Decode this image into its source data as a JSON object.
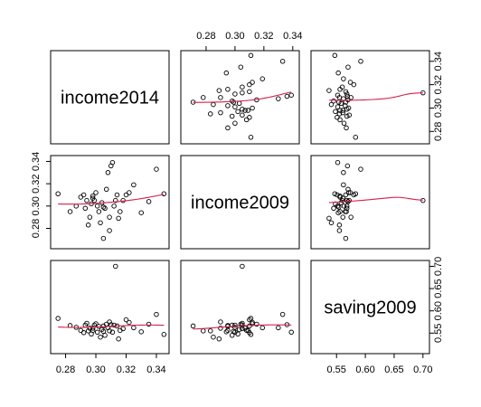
{
  "chart_data": {
    "type": "scatter",
    "variables": [
      "income2014",
      "income2009",
      "saving2009"
    ],
    "ticks": {
      "income2014": [
        0.28,
        0.3,
        0.32,
        0.34
      ],
      "income2009": [
        0.28,
        0.3,
        0.32,
        0.34
      ],
      "saving2009": [
        0.55,
        0.6,
        0.65,
        0.7
      ]
    },
    "tick_labels": {
      "income2014": [
        "0.28",
        "0.30",
        "0.32",
        "0.34"
      ],
      "income2009": [
        "0.28",
        "0.30",
        "0.32",
        "0.34"
      ],
      "saving2009": [
        "0.55",
        "0.60",
        "0.65",
        "0.70"
      ]
    },
    "ranges": {
      "income2014": [
        0.2725,
        0.346
      ],
      "income2009": [
        0.265,
        0.342
      ],
      "saving2009": [
        0.512,
        0.705
      ]
    },
    "smoother_color": "#d6204b",
    "grid": false,
    "legend": "none",
    "points": {
      "income2014": [
        0.275,
        0.283,
        0.287,
        0.29,
        0.292,
        0.293,
        0.294,
        0.295,
        0.296,
        0.297,
        0.298,
        0.299,
        0.3,
        0.301,
        0.302,
        0.303,
        0.304,
        0.305,
        0.306,
        0.307,
        0.308,
        0.309,
        0.31,
        0.311,
        0.312,
        0.313,
        0.314,
        0.315,
        0.316,
        0.318,
        0.32,
        0.322,
        0.325,
        0.33,
        0.335,
        0.34,
        0.345,
        0.298,
        0.305,
        0.309
      ],
      "income2009": [
        0.311,
        0.295,
        0.3,
        0.308,
        0.31,
        0.298,
        0.305,
        0.283,
        0.29,
        0.302,
        0.309,
        0.305,
        0.312,
        0.3,
        0.295,
        0.285,
        0.303,
        0.299,
        0.298,
        0.315,
        0.33,
        0.29,
        0.336,
        0.339,
        0.3,
        0.305,
        0.31,
        0.289,
        0.295,
        0.305,
        0.31,
        0.312,
        0.319,
        0.294,
        0.304,
        0.333,
        0.311,
        0.307,
        0.271,
        0.278
      ],
      "saving2009": [
        0.583,
        0.567,
        0.563,
        0.556,
        0.551,
        0.568,
        0.572,
        0.555,
        0.561,
        0.548,
        0.556,
        0.568,
        0.571,
        0.552,
        0.565,
        0.541,
        0.558,
        0.554,
        0.545,
        0.57,
        0.562,
        0.575,
        0.569,
        0.552,
        0.568,
        0.7,
        0.566,
        0.537,
        0.556,
        0.56,
        0.58,
        0.574,
        0.562,
        0.553,
        0.57,
        0.592,
        0.547,
        0.561,
        0.566,
        0.555
      ]
    }
  }
}
